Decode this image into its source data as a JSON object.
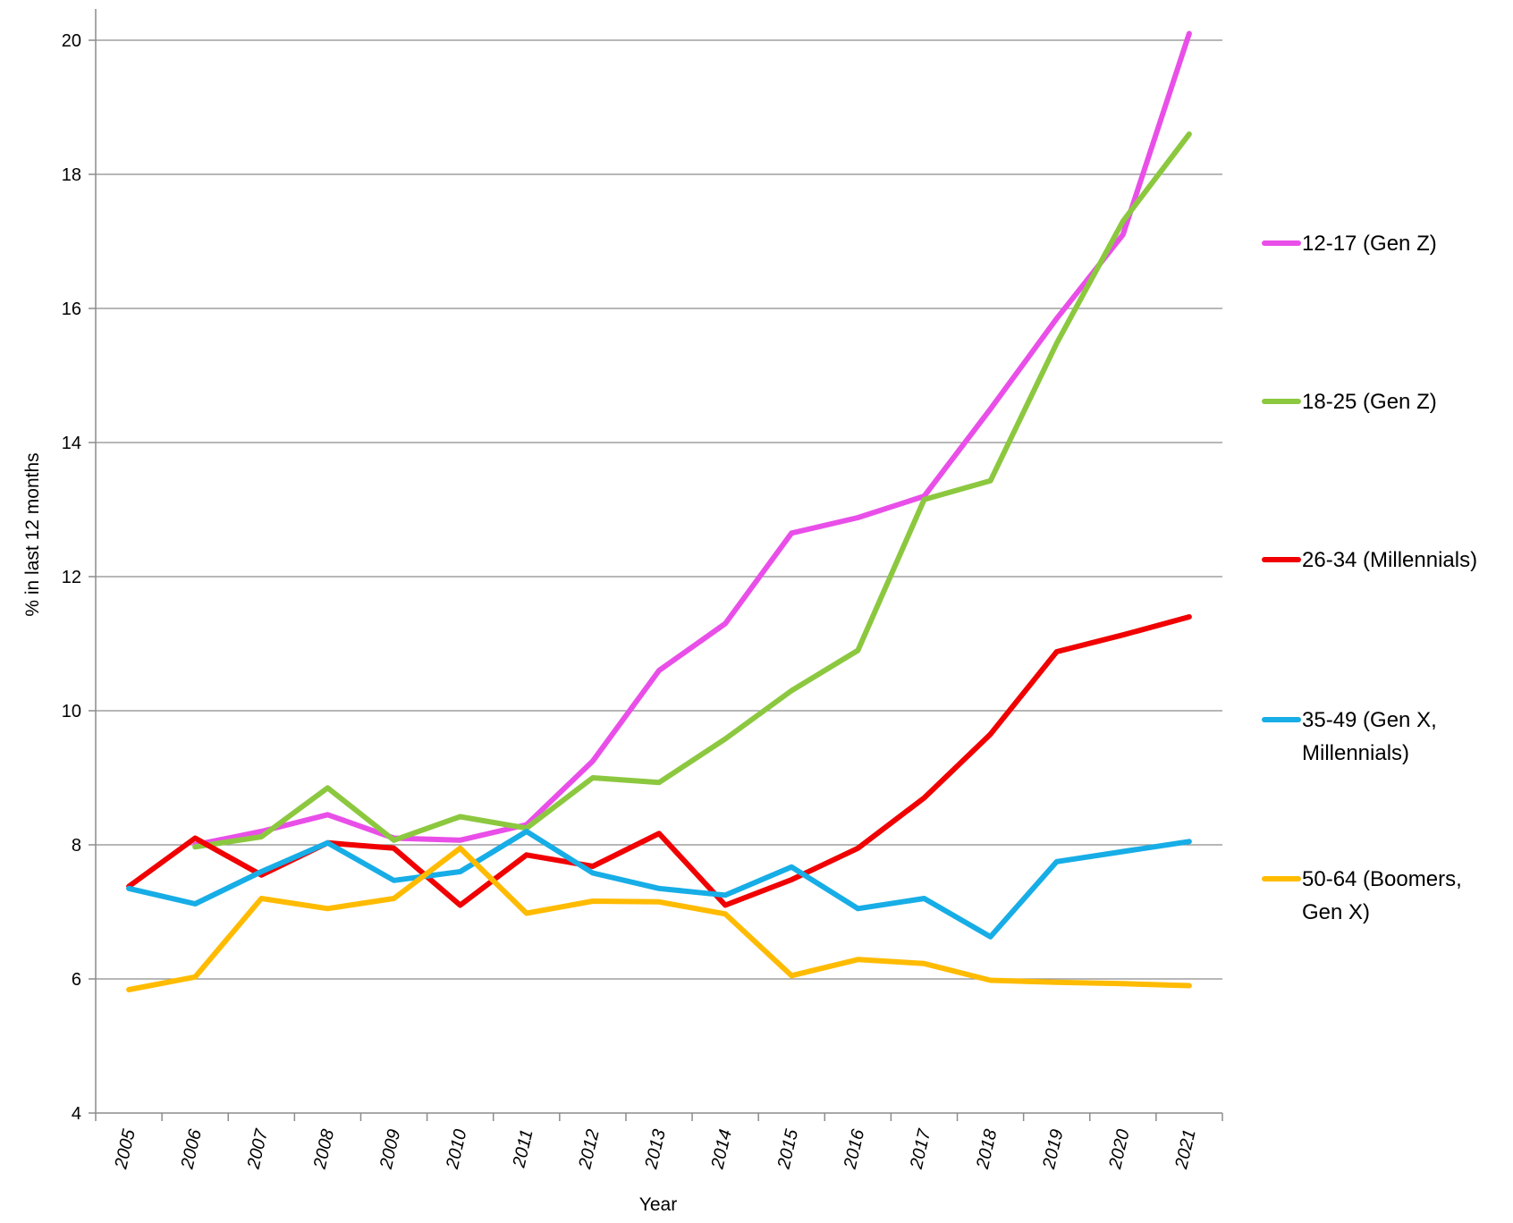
{
  "chart_data": {
    "type": "line",
    "xlabel": "Year",
    "ylabel": "% in last 12 months",
    "ylim": [
      4,
      20
    ],
    "yticks": [
      4,
      6,
      8,
      10,
      12,
      14,
      16,
      18,
      20
    ],
    "grid": true,
    "legend_position": "right",
    "x": [
      "2005",
      "2006",
      "2007",
      "2008",
      "2009",
      "2010",
      "2011",
      "2012",
      "2013",
      "2014",
      "2015",
      "2016",
      "2017",
      "2018",
      "2019",
      "2020",
      "2021"
    ],
    "series": [
      {
        "name": "12-17 (Gen Z)",
        "color": "#e94fe8",
        "values": [
          null,
          8.0,
          8.2,
          8.45,
          8.1,
          8.07,
          8.3,
          9.25,
          10.6,
          11.3,
          12.65,
          12.88,
          13.2,
          14.5,
          15.85,
          17.1,
          20.1
        ]
      },
      {
        "name": "18-25 (Gen Z)",
        "color": "#8cc83f",
        "values": [
          null,
          7.97,
          8.12,
          8.85,
          8.07,
          8.42,
          8.25,
          9.0,
          8.93,
          9.58,
          10.3,
          10.9,
          13.15,
          13.43,
          15.48,
          17.3,
          18.6
        ]
      },
      {
        "name": "26-34 (Millennials)",
        "color": "#f00000",
        "values": [
          7.38,
          8.1,
          7.55,
          8.03,
          7.95,
          7.1,
          7.85,
          7.68,
          8.17,
          7.1,
          7.48,
          7.95,
          8.7,
          9.65,
          10.88,
          11.13,
          11.4
        ]
      },
      {
        "name": "35-49 (Gen X, Millennials)",
        "label_lines": [
          "35-49 (Gen X,",
          "Millennials)"
        ],
        "color": "#17ade6",
        "values": [
          7.35,
          7.12,
          7.6,
          8.03,
          7.47,
          7.6,
          8.2,
          7.58,
          7.35,
          7.25,
          7.67,
          7.05,
          7.2,
          6.63,
          7.75,
          7.9,
          8.05
        ]
      },
      {
        "name": "50-64 (Boomers, Gen X)",
        "label_lines": [
          "50-64 (Boomers,",
          "Gen X)"
        ],
        "color": "#ffbb00",
        "values": [
          5.84,
          6.03,
          7.2,
          7.05,
          7.2,
          7.95,
          6.98,
          7.16,
          7.15,
          6.97,
          6.05,
          6.29,
          6.23,
          5.98,
          5.95,
          5.93,
          5.9
        ]
      }
    ]
  }
}
